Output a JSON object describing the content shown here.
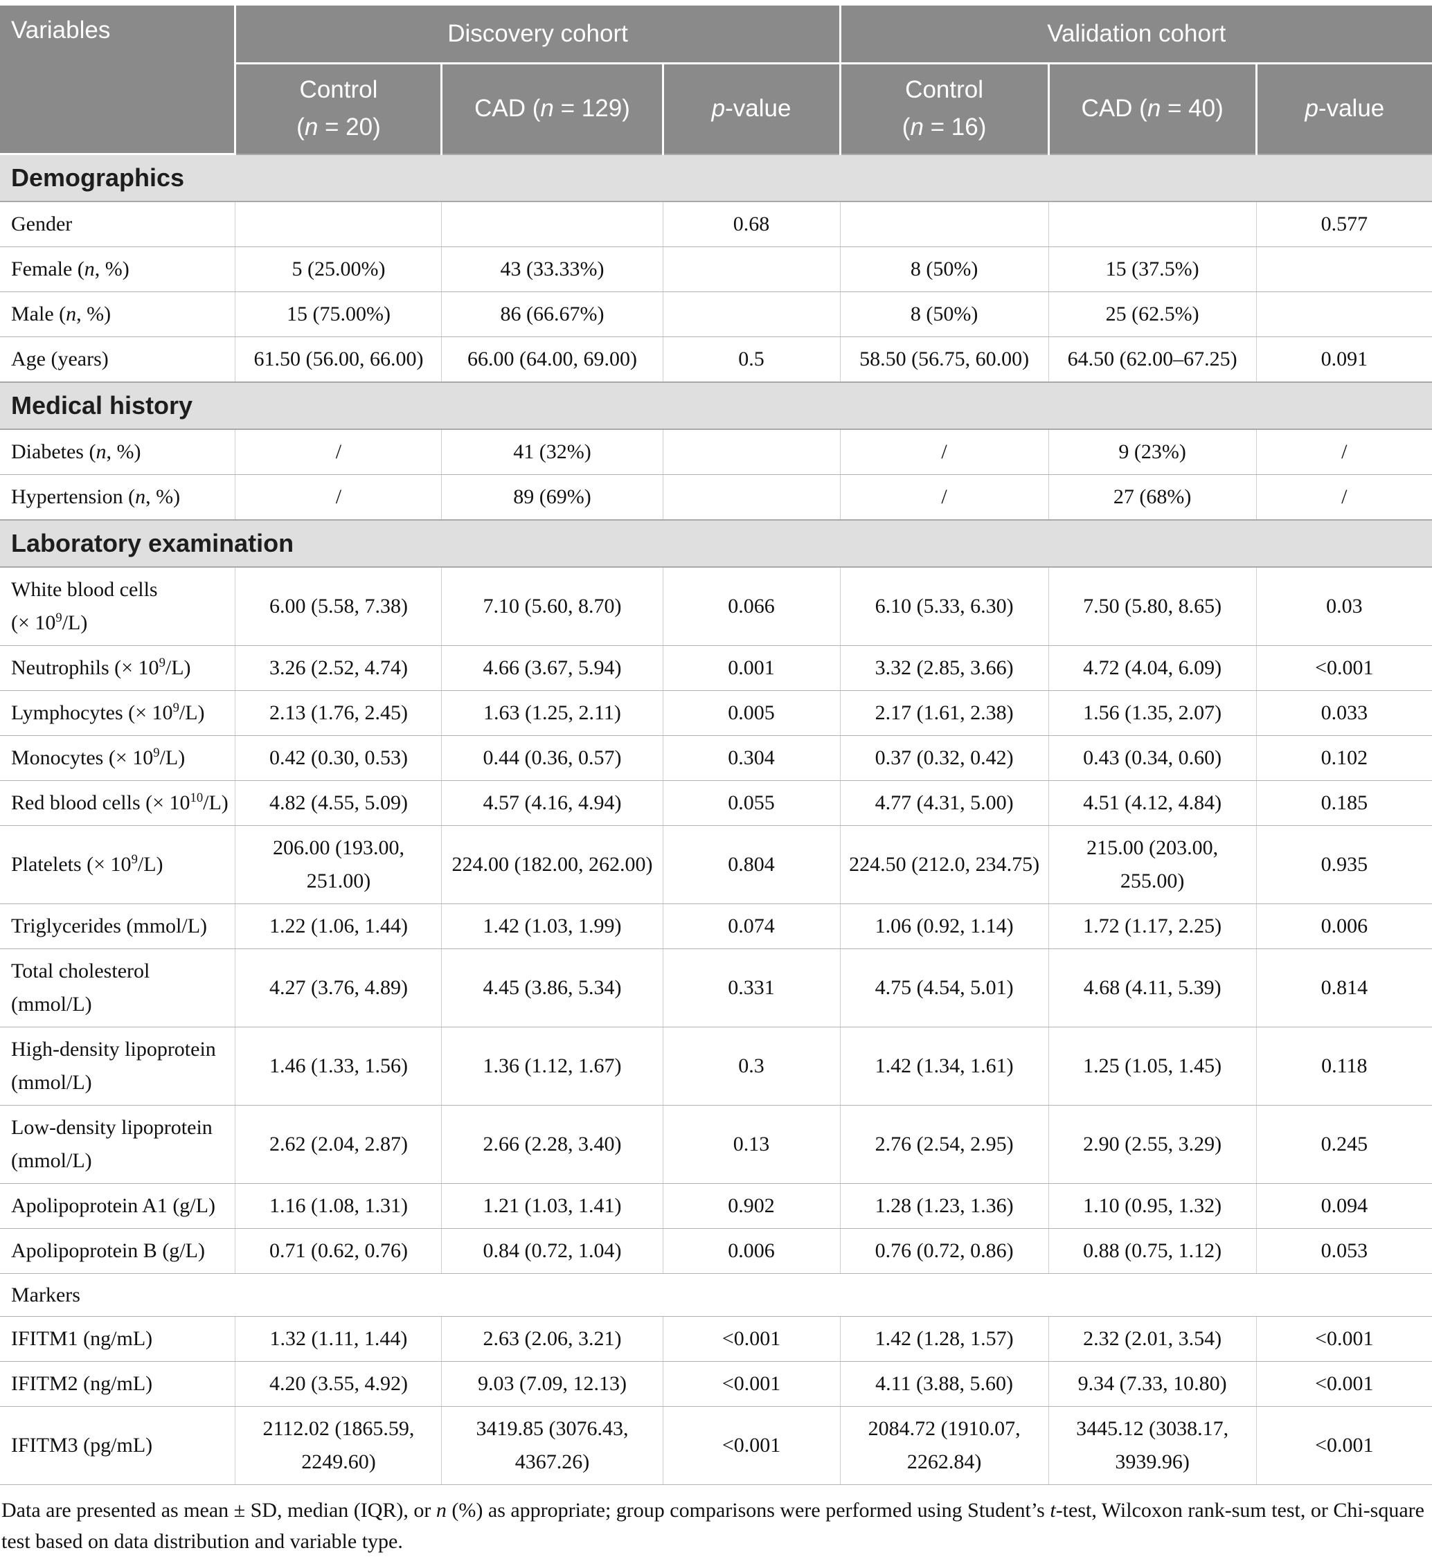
{
  "colors": {
    "header_bg": "#8a8a8a",
    "section_bg": "#dfdfdf"
  },
  "header": {
    "variables": "Variables",
    "discovery": "Discovery cohort",
    "validation": "Validation cohort",
    "cols": [
      "Control\n(_n_ = 20)",
      "CAD (_n_ = 129)",
      "_p_-value",
      "Control\n(_n_ = 16)",
      "CAD (_n_ = 40)",
      "_p_-value"
    ]
  },
  "table": {
    "rows": [
      {
        "type": "section",
        "label": "Demographics"
      },
      {
        "type": "data",
        "cells": [
          "Gender",
          "",
          "",
          "0.68",
          "",
          "",
          "0.577"
        ]
      },
      {
        "type": "data",
        "cells": [
          "Female (_n_, %)",
          "5 (25.00%)",
          "43 (33.33%)",
          "",
          "8 (50%)",
          "15 (37.5%)",
          ""
        ]
      },
      {
        "type": "data",
        "cells": [
          "Male (_n_, %)",
          "15 (75.00%)",
          "86 (66.67%)",
          "",
          "8 (50%)",
          "25 (62.5%)",
          ""
        ]
      },
      {
        "type": "data",
        "cells": [
          "Age (years)",
          "61.50 (56.00, 66.00)",
          "66.00 (64.00, 69.00)",
          "0.5",
          "58.50 (56.75, 60.00)",
          "64.50 (62.00–67.25)",
          "0.091"
        ]
      },
      {
        "type": "section",
        "label": "Medical history"
      },
      {
        "type": "data",
        "cells": [
          "Diabetes (_n_, %)",
          "/",
          "41 (32%)",
          "",
          "/",
          "9 (23%)",
          "/"
        ]
      },
      {
        "type": "data",
        "cells": [
          "Hypertension (_n_, %)",
          "/",
          "89 (69%)",
          "",
          "/",
          "27 (68%)",
          "/"
        ]
      },
      {
        "type": "section",
        "label": "Laboratory examination"
      },
      {
        "type": "data",
        "cells": [
          "White blood cells\n(× 10^9^/L)",
          "6.00 (5.58, 7.38)",
          "7.10 (5.60, 8.70)",
          "0.066",
          "6.10 (5.33, 6.30)",
          "7.50 (5.80, 8.65)",
          "0.03"
        ]
      },
      {
        "type": "data",
        "cells": [
          "Neutrophils (× 10^9^/L)",
          "3.26 (2.52, 4.74)",
          "4.66 (3.67, 5.94)",
          "0.001",
          "3.32 (2.85, 3.66)",
          "4.72 (4.04, 6.09)",
          "<0.001"
        ]
      },
      {
        "type": "data",
        "cells": [
          "Lymphocytes (× 10^9^/L)",
          "2.13 (1.76, 2.45)",
          "1.63 (1.25, 2.11)",
          "0.005",
          "2.17 (1.61, 2.38)",
          "1.56 (1.35, 2.07)",
          "0.033"
        ]
      },
      {
        "type": "data",
        "cells": [
          "Monocytes (× 10^9^/L)",
          "0.42 (0.30, 0.53)",
          "0.44 (0.36, 0.57)",
          "0.304",
          "0.37 (0.32, 0.42)",
          "0.43 (0.34, 0.60)",
          "0.102"
        ]
      },
      {
        "type": "data",
        "cells": [
          "Red blood cells (× 10^10^/L)",
          "4.82 (4.55, 5.09)",
          "4.57 (4.16, 4.94)",
          "0.055",
          "4.77 (4.31, 5.00)",
          "4.51 (4.12, 4.84)",
          "0.185"
        ]
      },
      {
        "type": "data",
        "cells": [
          "Platelets (× 10^9^/L)",
          "206.00 (193.00,\n251.00)",
          "224.00 (182.00, 262.00)",
          "0.804",
          "224.50 (212.0, 234.75)",
          "215.00 (203.00,\n255.00)",
          "0.935"
        ]
      },
      {
        "type": "data",
        "cells": [
          "Triglycerides (mmol/L)",
          "1.22 (1.06, 1.44)",
          "1.42 (1.03, 1.99)",
          "0.074",
          "1.06 (0.92, 1.14)",
          "1.72 (1.17, 2.25)",
          "0.006"
        ]
      },
      {
        "type": "data",
        "cells": [
          "Total cholesterol\n(mmol/L)",
          "4.27 (3.76, 4.89)",
          "4.45 (3.86, 5.34)",
          "0.331",
          "4.75 (4.54, 5.01)",
          "4.68 (4.11, 5.39)",
          "0.814"
        ]
      },
      {
        "type": "data",
        "cells": [
          "High-density lipoprotein\n(mmol/L)",
          "1.46 (1.33, 1.56)",
          "1.36 (1.12, 1.67)",
          "0.3",
          "1.42 (1.34, 1.61)",
          "1.25 (1.05, 1.45)",
          "0.118"
        ]
      },
      {
        "type": "data",
        "cells": [
          "Low-density lipoprotein\n(mmol/L)",
          "2.62 (2.04, 2.87)",
          "2.66 (2.28, 3.40)",
          "0.13",
          "2.76 (2.54, 2.95)",
          "2.90 (2.55, 3.29)",
          "0.245"
        ]
      },
      {
        "type": "data",
        "cells": [
          "Apolipoprotein A1 (g/L)",
          "1.16 (1.08, 1.31)",
          "1.21 (1.03, 1.41)",
          "0.902",
          "1.28 (1.23, 1.36)",
          "1.10 (0.95, 1.32)",
          "0.094"
        ]
      },
      {
        "type": "data",
        "cells": [
          "Apolipoprotein B (g/L)",
          "0.71 (0.62, 0.76)",
          "0.84 (0.72, 1.04)",
          "0.006",
          "0.76 (0.72, 0.86)",
          "0.88 (0.75, 1.12)",
          "0.053"
        ]
      },
      {
        "type": "subsection",
        "label": "Markers"
      },
      {
        "type": "data",
        "cells": [
          "IFITM1 (ng/mL)",
          "1.32 (1.11, 1.44)",
          "2.63 (2.06, 3.21)",
          "<0.001",
          "1.42 (1.28, 1.57)",
          "2.32 (2.01, 3.54)",
          "<0.001"
        ]
      },
      {
        "type": "data",
        "cells": [
          "IFITM2 (ng/mL)",
          "4.20 (3.55, 4.92)",
          "9.03 (7.09, 12.13)",
          "<0.001",
          "4.11 (3.88, 5.60)",
          "9.34 (7.33, 10.80)",
          "<0.001"
        ]
      },
      {
        "type": "data",
        "cells": [
          "IFITM3 (pg/mL)",
          "2112.02 (1865.59,\n2249.60)",
          "3419.85 (3076.43,\n4367.26)",
          "<0.001",
          "2084.72 (1910.07,\n2262.84)",
          "3445.12 (3038.17,\n3939.96)",
          "<0.001"
        ]
      }
    ]
  },
  "footnote": "Data are presented as mean ± SD, median (IQR), or _n_ (%) as appropriate; group comparisons were performed using Student’s _t_-test, Wilcoxon rank-sum test, or Chi-square test based on data distribution and variable type."
}
